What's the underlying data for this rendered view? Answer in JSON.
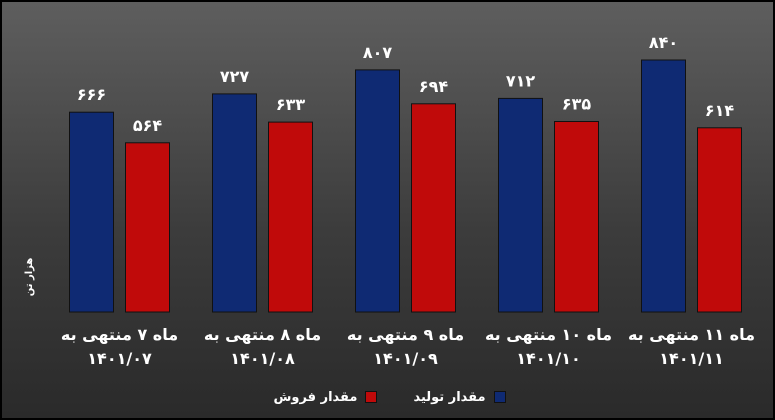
{
  "chart_data": {
    "type": "bar",
    "ylabel": "هزار تن",
    "categories": [
      [
        "ماه ۷ منتهی به",
        "۱۴۰۱/۰۷"
      ],
      [
        "ماه ۸ منتهی به",
        "۱۴۰۱/۰۸"
      ],
      [
        "ماه ۹ منتهی به",
        "۱۴۰۱/۰۹"
      ],
      [
        "ماه ۱۰ منتهی به",
        "۱۴۰۱/۱۰"
      ],
      [
        "ماه ۱۱ منتهی به",
        "۱۴۰۱/۱۱"
      ]
    ],
    "ylim": [
      0,
      900
    ],
    "series": [
      {
        "name": "مقدار تولید",
        "color": "#0f2a73",
        "values": [
          666,
          727,
          807,
          712,
          840
        ],
        "labels": [
          "۶۶۶",
          "۷۲۷",
          "۸۰۷",
          "۷۱۲",
          "۸۴۰"
        ]
      },
      {
        "name": "مقدار فروش",
        "color": "#c00a0a",
        "values": [
          564,
          633,
          694,
          635,
          614
        ],
        "labels": [
          "۵۶۴",
          "۶۳۳",
          "۶۹۴",
          "۶۳۵",
          "۶۱۴"
        ]
      }
    ],
    "legend_position": "bottom"
  }
}
